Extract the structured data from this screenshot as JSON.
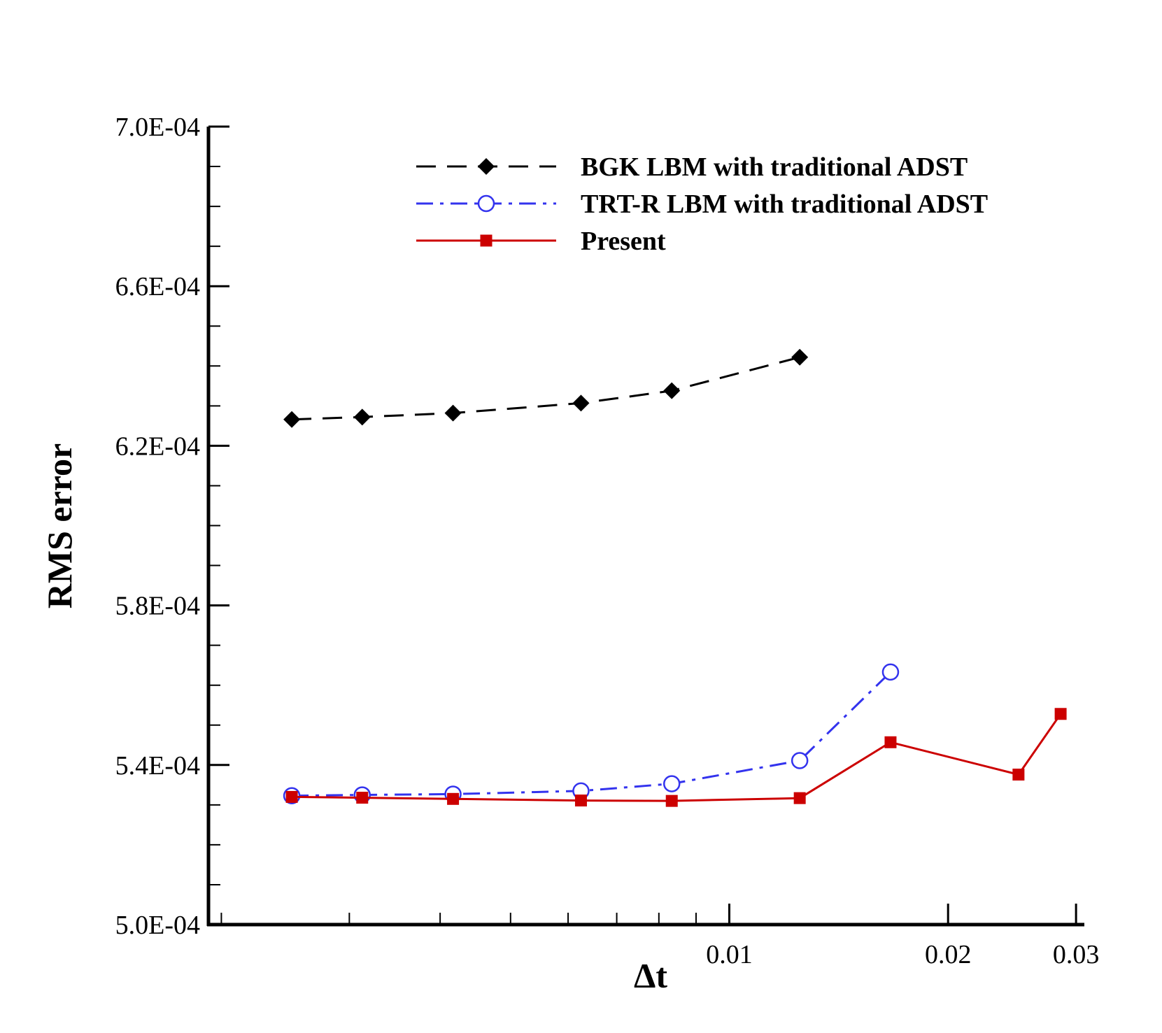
{
  "chart_data": {
    "type": "line",
    "xlabel": "Δt",
    "ylabel": "RMS error",
    "xscale": "log",
    "xlim": [
      0.00192,
      0.0308
    ],
    "ylim": [
      0.0005,
      0.0007
    ],
    "y_ticks": [
      0.0005,
      0.00054,
      0.00058,
      0.00062,
      0.00066,
      0.0007
    ],
    "y_tick_labels": [
      "5.0E-04",
      "5.4E-04",
      "5.8E-04",
      "6.2E-04",
      "6.6E-04",
      "7.0E-04"
    ],
    "x_tick_labels": [
      {
        "value": 0.01,
        "label": "0.01"
      },
      {
        "value": 0.02,
        "label": "0.02"
      },
      {
        "value": 0.03,
        "label": "0.03"
      }
    ],
    "legend_position": "top-right",
    "series": [
      {
        "name": "BGK LBM with traditional ADST",
        "color": "#000000",
        "line_style": "dashed",
        "marker": "diamond",
        "x": [
          0.0025,
          0.003125,
          0.004167,
          0.00625,
          0.008333,
          0.0125
        ],
        "y": [
          0.0006266,
          0.0006272,
          0.0006282,
          0.0006307,
          0.0006338,
          0.0006422
        ]
      },
      {
        "name": "TRT-R LBM with traditional ADST",
        "color": "#3333ee",
        "line_style": "dash-dot",
        "marker": "open-circle",
        "x": [
          0.0025,
          0.003125,
          0.004167,
          0.00625,
          0.008333,
          0.0125,
          0.016667
        ],
        "y": [
          0.0005323,
          0.0005325,
          0.0005327,
          0.0005335,
          0.0005353,
          0.0005411,
          0.0005633
        ]
      },
      {
        "name": "Present",
        "color": "#cc0000",
        "line_style": "solid",
        "marker": "filled-square",
        "x": [
          0.0025,
          0.003125,
          0.004167,
          0.00625,
          0.008333,
          0.0125,
          0.016667,
          0.025,
          0.028571
        ],
        "y": [
          0.000532,
          0.0005318,
          0.0005315,
          0.0005311,
          0.000531,
          0.0005317,
          0.0005457,
          0.0005376,
          0.0005528
        ]
      }
    ]
  }
}
